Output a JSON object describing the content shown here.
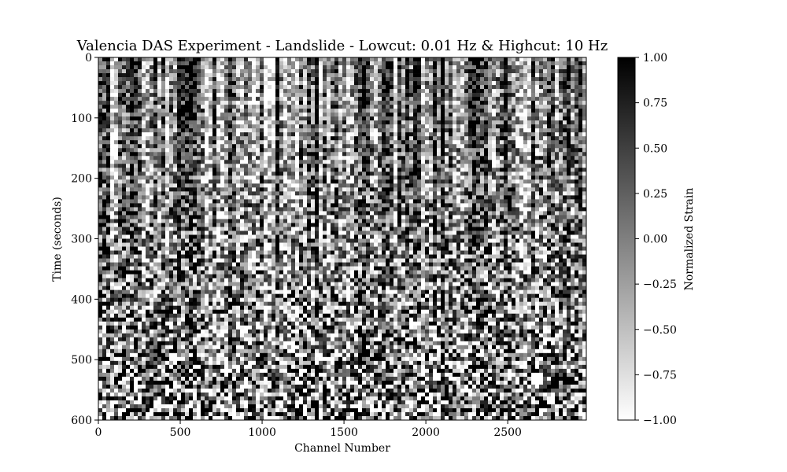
{
  "chart_data": {
    "type": "heatmap",
    "title": "Valencia DAS Experiment - Landslide - Lowcut: 0.01 Hz & Highcut: 10 Hz",
    "xlabel": "Channel Number",
    "ylabel": "Time (seconds)",
    "xlim": [
      0,
      2980
    ],
    "ylim": [
      600,
      0
    ],
    "x_ticks": [
      0,
      500,
      1000,
      1500,
      2000,
      2500
    ],
    "x_tick_labels": [
      "0",
      "500",
      "1000",
      "1500",
      "2000",
      "2500"
    ],
    "y_ticks": [
      0,
      100,
      200,
      300,
      400,
      500,
      600
    ],
    "y_tick_labels": [
      "0",
      "100",
      "200",
      "300",
      "400",
      "500",
      "600"
    ],
    "colormap": "gray_r",
    "color_low": "#ffffff",
    "color_high": "#000000",
    "colorbar": {
      "label": "Normalized Strain",
      "range": [
        -1.0,
        1.0
      ],
      "ticks": [
        1.0,
        0.75,
        0.5,
        0.25,
        0.0,
        -0.25,
        -0.5,
        -0.75,
        -1.0
      ],
      "tick_labels": [
        "1.00",
        "0.75",
        "0.50",
        "0.25",
        "0.00",
        "−0.25",
        "−0.50",
        "−0.75",
        "−1.00"
      ]
    },
    "grid": false
  }
}
